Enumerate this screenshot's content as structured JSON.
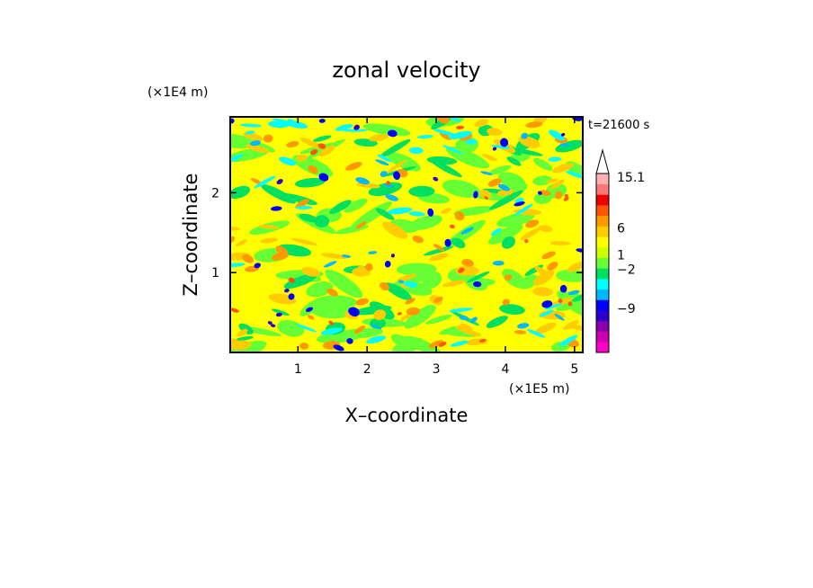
{
  "chart_data": {
    "type": "heatmap",
    "title": "zonal velocity",
    "xlabel": "X–coordinate",
    "ylabel": "Z–coordinate",
    "x_scale_label": "(×1E5 m)",
    "y_scale_label": "(×1E4 m)",
    "time_label": "t=21600 s",
    "xlim": [
      0.02,
      5.12
    ],
    "ylim": [
      0.0,
      2.95
    ],
    "x_ticks": [
      "1",
      "2",
      "3",
      "4",
      "5"
    ],
    "y_ticks": [
      "1",
      "2"
    ],
    "colorbar": {
      "levels_shown": [
        "15.1",
        "6",
        "1",
        "−2",
        "−9"
      ],
      "colors": [
        "#ff00c8",
        "#cc00b0",
        "#8800aa",
        "#2a00cc",
        "#0000ff",
        "#00b8ff",
        "#00ffff",
        "#00e060",
        "#66ff33",
        "#ccff00",
        "#ffff00",
        "#ffcc00",
        "#ff9900",
        "#ff5500",
        "#ee0000",
        "#ff7777",
        "#ffb0b0"
      ]
    }
  }
}
